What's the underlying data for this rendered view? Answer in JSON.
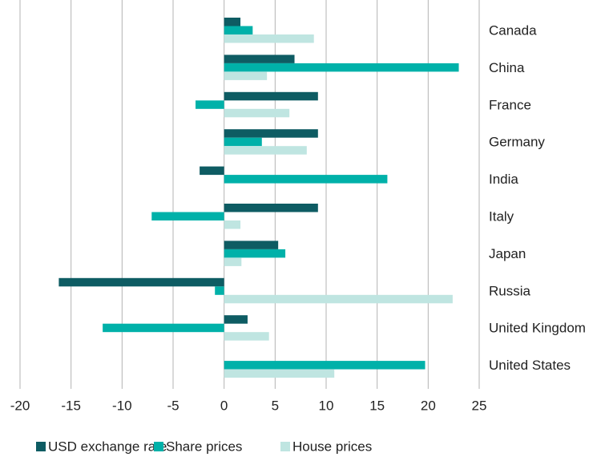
{
  "chart_data": {
    "type": "hbar",
    "categories": [
      "Canada",
      "China",
      "France",
      "Germany",
      "India",
      "Italy",
      "Japan",
      "Russia",
      "United Kingdom",
      "United States"
    ],
    "series": [
      {
        "name": "USD exchange rate",
        "color": "#0e5c63",
        "values": [
          1.6,
          6.9,
          9.2,
          9.2,
          -2.4,
          9.2,
          5.3,
          -16.2,
          2.3,
          null
        ]
      },
      {
        "name": "Share prices",
        "color": "#00b1a9",
        "values": [
          2.8,
          23.0,
          -2.8,
          3.7,
          16.0,
          -7.1,
          6.0,
          -0.9,
          -11.9,
          19.7
        ]
      },
      {
        "name": "House prices",
        "color": "#bfe5e1",
        "values": [
          8.8,
          4.2,
          6.4,
          8.1,
          null,
          1.6,
          1.7,
          22.4,
          4.4,
          10.8
        ]
      }
    ],
    "xlim": [
      -20,
      25
    ],
    "xticks": [
      -20,
      -15,
      -10,
      -5,
      0,
      5,
      10,
      15,
      20,
      25
    ],
    "grid": true,
    "legend": "bottom"
  }
}
